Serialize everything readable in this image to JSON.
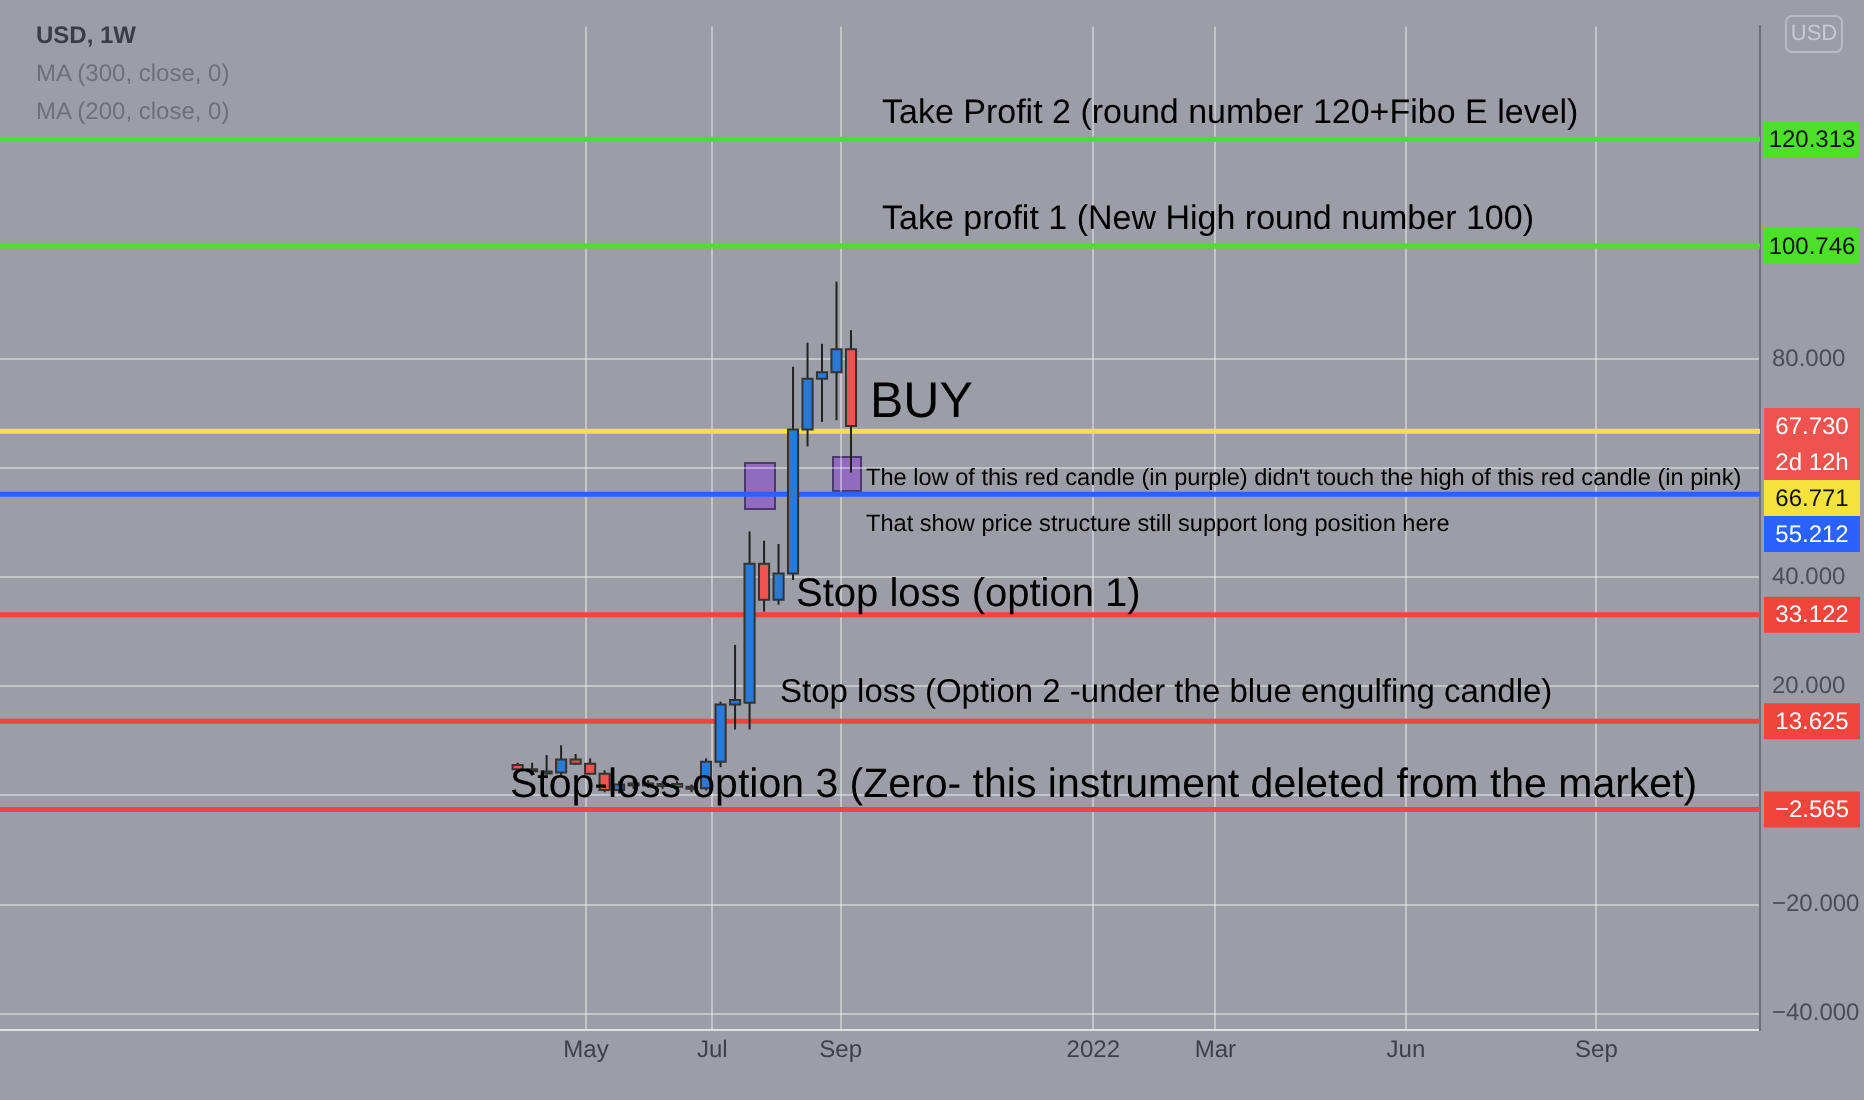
{
  "chart_data": {
    "type": "candlestick",
    "title": "USD, 1W",
    "x": [
      "2021-03-29",
      "2021-04-05",
      "2021-04-12",
      "2021-04-19",
      "2021-04-26",
      "2021-05-03",
      "2021-05-10",
      "2021-05-17",
      "2021-05-24",
      "2021-05-31",
      "2021-06-07",
      "2021-06-14",
      "2021-06-21",
      "2021-06-28",
      "2021-07-05",
      "2021-07-12",
      "2021-07-19",
      "2021-07-26",
      "2021-08-02",
      "2021-08-09",
      "2021-08-16",
      "2021-08-23",
      "2021-08-30",
      "2021-09-06"
    ],
    "ohlc": [
      [
        5.6,
        6.0,
        4.4,
        4.8
      ],
      [
        4.8,
        6.0,
        3.8,
        4.6
      ],
      [
        4.4,
        7.4,
        3.8,
        4.2
      ],
      [
        4.2,
        9.2,
        3.6,
        6.6
      ],
      [
        6.6,
        7.6,
        5.6,
        5.8
      ],
      [
        5.8,
        6.8,
        3.8,
        4.0
      ],
      [
        4.0,
        4.6,
        0.6,
        1.0
      ],
      [
        1.0,
        2.6,
        0.4,
        2.0
      ],
      [
        2.0,
        2.8,
        1.2,
        2.2
      ],
      [
        2.2,
        2.8,
        1.4,
        1.9
      ],
      [
        1.9,
        2.6,
        1.2,
        2.1
      ],
      [
        2.1,
        2.6,
        0.8,
        1.6
      ],
      [
        1.6,
        2.0,
        0.6,
        1.4
      ],
      [
        1.3,
        6.8,
        0.9,
        6.2
      ],
      [
        6.2,
        17.2,
        5.2,
        16.7
      ],
      [
        16.7,
        27.6,
        12.1,
        17.5
      ],
      [
        17.0,
        48.4,
        12.1,
        42.5
      ],
      [
        42.5,
        46.7,
        33.7,
        35.9
      ],
      [
        35.9,
        46.1,
        35.0,
        40.7
      ],
      [
        40.7,
        78.6,
        39.5,
        67.1
      ],
      [
        67.1,
        83.0,
        64.0,
        76.4
      ],
      [
        76.4,
        82.8,
        68.5,
        77.6
      ],
      [
        77.6,
        94.2,
        68.8,
        81.8
      ],
      [
        81.8,
        85.3,
        59.2,
        67.73
      ]
    ],
    "colors": [
      "#ef5350",
      "#2979d6",
      "#ef5350",
      "#2979d6",
      "#ef5350",
      "#ef5350",
      "#ef5350",
      "#2979d6",
      "#2979d6",
      "#ef5350",
      "#2979d6",
      "#ef5350",
      "#ef5350",
      "#2979d6",
      "#2979d6",
      "#2979d6",
      "#2979d6",
      "#ef5350",
      "#2979d6",
      "#2979d6",
      "#2979d6",
      "#2979d6",
      "#2979d6",
      "#ef5350"
    ],
    "xlim": [
      "2020-07-22",
      "2022-11-19"
    ],
    "xticks": [
      {
        "value": "2021-05-01",
        "label": "May"
      },
      {
        "value": "2021-07-01",
        "label": "Jul"
      },
      {
        "value": "2021-09-01",
        "label": "Sep"
      },
      {
        "value": "2022-01-01",
        "label": "2022"
      },
      {
        "value": "2022-03-01",
        "label": "Mar"
      },
      {
        "value": "2022-06-01",
        "label": "Jun"
      },
      {
        "value": "2022-09-01",
        "label": "Sep"
      }
    ],
    "ylim": [
      -43,
      141
    ],
    "yticks": [
      {
        "value": -40,
        "label": "−40.000"
      },
      {
        "value": -20,
        "label": "−20.000"
      },
      {
        "value": 0,
        "label": null
      },
      {
        "value": 20,
        "label": "20.000"
      },
      {
        "value": 40,
        "label": "40.000"
      },
      {
        "value": 60,
        "label": null
      },
      {
        "value": 80,
        "label": "80.000"
      }
    ],
    "grid": true,
    "ref_lines": [
      {
        "axis": "y",
        "value": 120.313,
        "label": "Take Profit 2 (round number 120+Fibo E level)",
        "color": "#4ce02a"
      },
      {
        "axis": "y",
        "value": 100.746,
        "label": "Take profit 1 (New High round number 100)",
        "color": "#4ce02a"
      },
      {
        "axis": "y",
        "value": 66.771,
        "label": "BUY",
        "color": "#f5e23a"
      },
      {
        "axis": "y",
        "value": 55.212,
        "label": "The low of this red candle (in purple) didn't touch the high of this red candle (in pink)\nThat show price structure still support long position here",
        "color": "#2962ff"
      },
      {
        "axis": "y",
        "value": 33.122,
        "label": "Stop loss (option 1)",
        "color": "#f0443c"
      },
      {
        "axis": "y",
        "value": 13.625,
        "label": "Stop loss (Option 2 -under the blue engulfing candle)",
        "color": "#f0443c"
      },
      {
        "axis": "y",
        "value": -2.565,
        "label": "Stop-loss option 3 (Zero- this instrument deleted from the market)",
        "color": "#f0443c"
      }
    ],
    "annotations": [
      "120.313",
      "100.746",
      "66.771",
      "55.212",
      "33.122",
      "13.625",
      "−2.565",
      "67.730",
      "2d 12h",
      "MA (300, close, 0)",
      "MA (200, close, 0)",
      "USD"
    ]
  }
}
